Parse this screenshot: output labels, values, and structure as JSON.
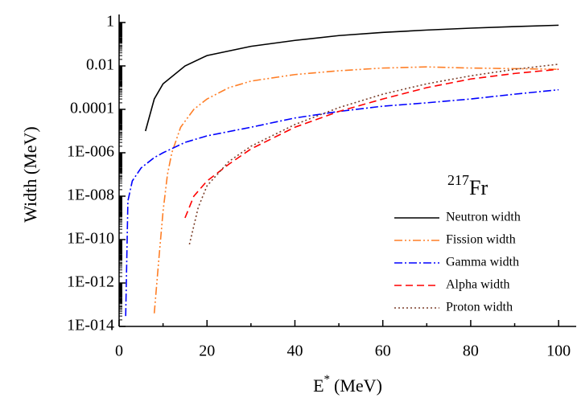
{
  "chart_data": {
    "type": "line",
    "annotation": {
      "sup": "217",
      "text": "Fr"
    },
    "ylabel": "Width (MeV)",
    "xlabel": {
      "base": "E",
      "sup": "*",
      "unit": "(MeV)"
    },
    "xlim": [
      0,
      104
    ],
    "xticks": [
      0,
      20,
      40,
      60,
      80,
      100
    ],
    "yscale": "log",
    "ylim": [
      1e-14,
      1
    ],
    "yticks": [
      1,
      0.01,
      0.0001,
      {
        "value": 1e-06,
        "label": "1E-006"
      },
      {
        "value": 1e-08,
        "label": "1E-008"
      },
      {
        "value": 1e-10,
        "label": "1E-010"
      },
      {
        "value": 1e-12,
        "label": "1E-012"
      },
      {
        "value": 1e-14,
        "label": "1E-014"
      }
    ],
    "legend": "lower right",
    "series": [
      {
        "name": "Neutron width",
        "color": "#000000",
        "style": "solid",
        "x": [
          6,
          8,
          10,
          15,
          20,
          30,
          40,
          50,
          60,
          70,
          80,
          90,
          100
        ],
        "values": [
          1e-05,
          0.0003,
          0.0015,
          0.01,
          0.03,
          0.08,
          0.15,
          0.25,
          0.35,
          0.45,
          0.55,
          0.65,
          0.75
        ]
      },
      {
        "name": "Fission width",
        "color": "#ff7f27",
        "style": "dashdotdot",
        "x": [
          8,
          9,
          10,
          11,
          12,
          14,
          17,
          20,
          25,
          30,
          40,
          50,
          60,
          70,
          80,
          90,
          100
        ],
        "values": [
          4e-14,
          1e-11,
          2e-09,
          1e-07,
          1e-06,
          1.5e-05,
          0.0001,
          0.0003,
          0.001,
          0.002,
          0.004,
          0.006,
          0.008,
          0.009,
          0.008,
          0.0075,
          0.007
        ]
      },
      {
        "name": "Gamma width",
        "color": "#0000ff",
        "style": "dashdot",
        "x": [
          1.5,
          2,
          3,
          5,
          8,
          10,
          15,
          20,
          30,
          40,
          50,
          60,
          70,
          80,
          90,
          100
        ],
        "values": [
          3e-14,
          6e-09,
          5e-08,
          2e-07,
          6e-07,
          1e-06,
          3e-06,
          6e-06,
          1.5e-05,
          4e-05,
          8e-05,
          0.00014,
          0.0002,
          0.0003,
          0.0005,
          0.0008
        ]
      },
      {
        "name": "Alpha width",
        "color": "#ff0000",
        "style": "dashed",
        "x": [
          15,
          17,
          20,
          25,
          30,
          40,
          50,
          60,
          70,
          80,
          90,
          100
        ],
        "values": [
          1e-09,
          1e-08,
          5e-08,
          3e-07,
          1.5e-06,
          1.5e-05,
          8e-05,
          0.0003,
          0.001,
          0.0025,
          0.0045,
          0.007
        ]
      },
      {
        "name": "Proton width",
        "color": "#7b3f2a",
        "style": "dotted",
        "x": [
          16,
          18,
          20,
          25,
          30,
          40,
          50,
          60,
          70,
          80,
          90,
          100
        ],
        "values": [
          6e-11,
          3e-09,
          3e-08,
          4e-07,
          2e-06,
          2e-05,
          0.00012,
          0.0005,
          0.0015,
          0.0035,
          0.007,
          0.012
        ]
      }
    ]
  }
}
